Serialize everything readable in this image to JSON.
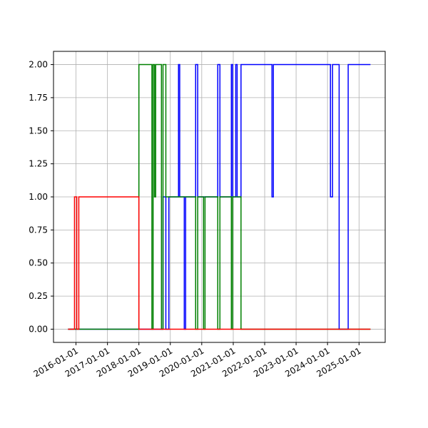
{
  "chart_data": {
    "type": "step",
    "x": [
      "2015-10-01",
      "2015-12-15",
      "2016-01-10",
      "2016-02-03",
      "2018-01-01",
      "2018-06-01",
      "2018-06-15",
      "2018-07-01",
      "2018-07-15",
      "2018-09-20",
      "2018-10-08",
      "2018-11-10",
      "2018-12-15",
      "2019-04-06",
      "2019-04-20",
      "2019-06-12",
      "2019-06-28",
      "2019-10-22",
      "2019-11-15",
      "2020-01-22",
      "2020-02-08",
      "2020-07-05",
      "2020-07-30",
      "2020-12-10",
      "2020-12-25",
      "2021-01-30",
      "2021-02-15",
      "2021-04-01",
      "2022-03-27",
      "2022-04-12",
      "2024-02-04",
      "2024-02-28",
      "2024-05-15",
      "2024-08-28",
      "2025-05-14"
    ],
    "series": [
      {
        "color": "#0000ff",
        "values": [
          0,
          0,
          0,
          0,
          0,
          0,
          0,
          0,
          0,
          0,
          1,
          0,
          1,
          2,
          1,
          0,
          1,
          2,
          1,
          1,
          1,
          2,
          1,
          2,
          1,
          2,
          1,
          2,
          1,
          2,
          1,
          2,
          0,
          2,
          2
        ]
      },
      {
        "color": "#008000",
        "values": [
          0,
          0,
          0,
          0,
          2,
          0,
          2,
          1,
          2,
          0,
          2,
          1,
          1,
          1,
          1,
          1,
          1,
          0,
          1,
          0,
          1,
          0,
          1,
          0,
          1,
          1,
          1,
          0,
          0,
          0,
          0,
          0,
          0,
          0,
          0
        ]
      },
      {
        "color": "#ff0000",
        "values": [
          0,
          1,
          0,
          1,
          0,
          0,
          0,
          0,
          0,
          0,
          0,
          0,
          0,
          0,
          0,
          0,
          0,
          0,
          0,
          0,
          0,
          0,
          0,
          0,
          0,
          0,
          0,
          0,
          0,
          0,
          0,
          0,
          0,
          0,
          0
        ]
      }
    ],
    "xlim": [
      "2015-04-15",
      "2025-11-01"
    ],
    "xticks": [
      "2016-01-01",
      "2017-01-01",
      "2018-01-01",
      "2019-01-01",
      "2020-01-01",
      "2021-01-01",
      "2022-01-01",
      "2023-01-01",
      "2024-01-01",
      "2025-01-01"
    ],
    "ylim": [
      -0.1,
      2.1
    ],
    "yticks": [
      {
        "value": 0,
        "label": "0.00"
      },
      {
        "value": 0.25,
        "label": "0.25"
      },
      {
        "value": 0.5,
        "label": "0.50"
      },
      {
        "value": 0.75,
        "label": "0.75"
      },
      {
        "value": 1,
        "label": "1.00"
      },
      {
        "value": 1.25,
        "label": "1.25"
      },
      {
        "value": 1.5,
        "label": "1.50"
      },
      {
        "value": 1.75,
        "label": "1.75"
      },
      {
        "value": 2,
        "label": "2.00"
      }
    ],
    "grid": true
  }
}
